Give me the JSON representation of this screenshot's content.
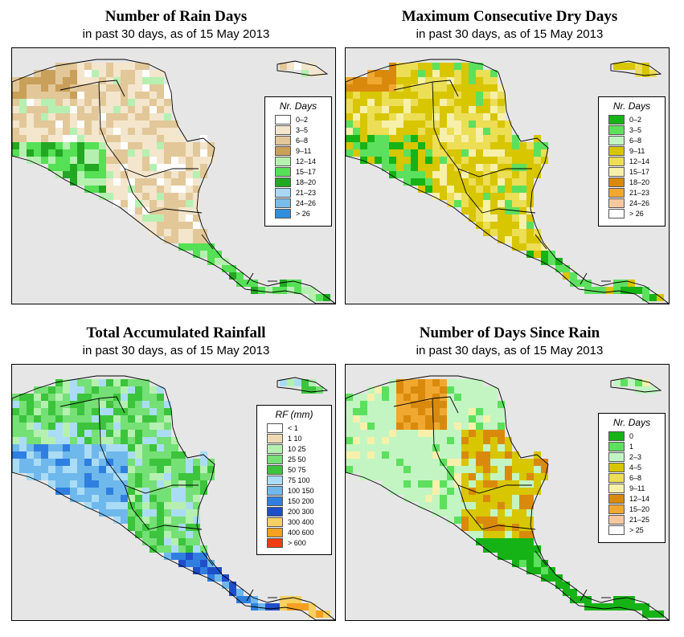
{
  "panels": [
    {
      "title": "Number of Rain Days",
      "subtitle": "in past 30 days, as of  15 May 2013",
      "legend_title": "Nr. Days",
      "legend": [
        {
          "label": "0–2",
          "color": "#ffffff"
        },
        {
          "label": "3–5",
          "color": "#f3e6cc"
        },
        {
          "label": "6–8",
          "color": "#e2c799"
        },
        {
          "label": "9–11",
          "color": "#c9a05a"
        },
        {
          "label": "12–14",
          "color": "#b6f0b0"
        },
        {
          "label": "15–17",
          "color": "#55e055"
        },
        {
          "label": "18–20",
          "color": "#22a822"
        },
        {
          "label": "21–23",
          "color": "#aad8f4"
        },
        {
          "label": "24–26",
          "color": "#77bdec"
        },
        {
          "label": "> 26",
          "color": "#2f8fdc"
        }
      ]
    },
    {
      "title": "Maximum Consecutive Dry Days",
      "subtitle": "in past 30 days, as of  15 May 2013",
      "legend_title": "Nr. Days",
      "legend": [
        {
          "label": "0–2",
          "color": "#16b316"
        },
        {
          "label": "3–5",
          "color": "#5de05d"
        },
        {
          "label": "6–8",
          "color": "#c2f5c2"
        },
        {
          "label": "9–11",
          "color": "#d8c600"
        },
        {
          "label": "12–14",
          "color": "#ecde55"
        },
        {
          "label": "15–17",
          "color": "#f7f0aa"
        },
        {
          "label": "18–20",
          "color": "#d98a0d"
        },
        {
          "label": "21–23",
          "color": "#f0a830"
        },
        {
          "label": "24–26",
          "color": "#f5c8a0"
        },
        {
          "label": "> 26",
          "color": "#ffffff"
        }
      ]
    },
    {
      "title": "Total Accumulated Rainfall",
      "subtitle": "in past 30 days, as of  15 May 2013",
      "legend_title": "RF (mm)",
      "legend": [
        {
          "label": "< 1",
          "color": "#ffffff"
        },
        {
          "label": "1   10",
          "color": "#eed9b3"
        },
        {
          "label": "10   25",
          "color": "#b6f0b0"
        },
        {
          "label": "25   50",
          "color": "#75e075"
        },
        {
          "label": "50   75",
          "color": "#3cc43c"
        },
        {
          "label": "75   100",
          "color": "#aadcf5"
        },
        {
          "label": "100   150",
          "color": "#6fb8ec"
        },
        {
          "label": "150   200",
          "color": "#2f7fe0"
        },
        {
          "label": "200   300",
          "color": "#1f4fc8"
        },
        {
          "label": "300   400",
          "color": "#f6d060"
        },
        {
          "label": "400   600",
          "color": "#f5a020"
        },
        {
          "label": "> 600",
          "color": "#f03c10"
        }
      ]
    },
    {
      "title": "Number of Days Since Rain",
      "subtitle": "in past 30 days, as of  15 May 2013",
      "legend_title": "Nr. Days",
      "legend": [
        {
          "label": "0",
          "color": "#16b316"
        },
        {
          "label": "1",
          "color": "#5de05d"
        },
        {
          "label": "2–3",
          "color": "#c2f5c2"
        },
        {
          "label": "4–5",
          "color": "#d8c600"
        },
        {
          "label": "6–8",
          "color": "#ecde55"
        },
        {
          "label": "9–11",
          "color": "#f7f0aa"
        },
        {
          "label": "12–14",
          "color": "#d98a0d"
        },
        {
          "label": "15–20",
          "color": "#f0a830"
        },
        {
          "label": "21–25",
          "color": "#f5c8a0"
        },
        {
          "label": "> 25",
          "color": "#ffffff"
        }
      ]
    }
  ]
}
